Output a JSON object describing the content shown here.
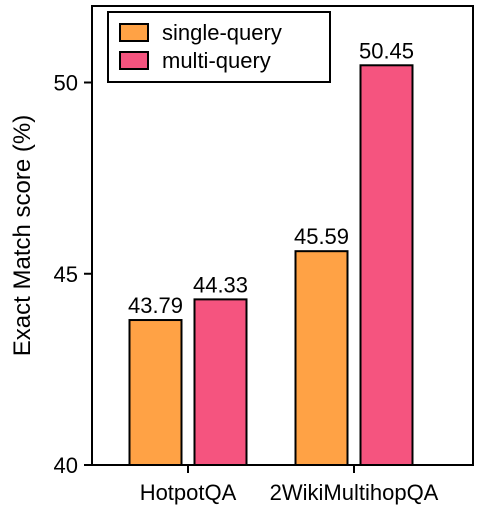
{
  "chart_data": {
    "type": "bar",
    "title": "",
    "xlabel": "",
    "ylabel": "Exact Match score (%)",
    "ylim": [
      40,
      52
    ],
    "yticks": [
      40,
      45,
      50
    ],
    "categories": [
      "HotpotQA",
      "2WikiMultihopQA"
    ],
    "series": [
      {
        "name": "single-query",
        "color": "#ffa245",
        "values": [
          43.79,
          45.59
        ],
        "labels": [
          "43.79",
          "45.59"
        ]
      },
      {
        "name": "multi-query",
        "color": "#f5547f",
        "values": [
          44.33,
          50.45
        ],
        "labels": [
          "44.33",
          "50.45"
        ]
      }
    ],
    "grid": false,
    "legend": "top-left"
  }
}
